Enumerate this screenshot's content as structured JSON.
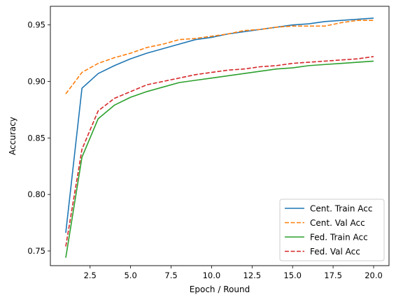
{
  "chart_data": {
    "type": "line",
    "title": "",
    "xlabel": "Epoch / Round",
    "ylabel": "Accuracy",
    "xlim": [
      0.05,
      20.95
    ],
    "ylim": [
      0.737,
      0.9665
    ],
    "xticks": [
      2.5,
      5.0,
      7.5,
      10.0,
      12.5,
      15.0,
      17.5,
      20.0
    ],
    "xtick_labels": [
      "2.5",
      "5.0",
      "7.5",
      "10.0",
      "12.5",
      "15.0",
      "17.5",
      "20.0"
    ],
    "yticks": [
      0.75,
      0.8,
      0.85,
      0.9,
      0.95
    ],
    "ytick_labels": [
      "0.75",
      "0.80",
      "0.85",
      "0.90",
      "0.95"
    ],
    "grid": false,
    "legend_position": "lower-right",
    "x": [
      1,
      2,
      3,
      4,
      5,
      6,
      7,
      8,
      9,
      10,
      11,
      12,
      13,
      14,
      15,
      16,
      17,
      18,
      19,
      20
    ],
    "series": [
      {
        "name": "Cent. Train Acc",
        "color": "#1f77b4",
        "style": "solid",
        "values": [
          0.766,
          0.894,
          0.907,
          0.914,
          0.92,
          0.925,
          0.929,
          0.933,
          0.937,
          0.939,
          0.942,
          0.944,
          0.946,
          0.948,
          0.95,
          0.951,
          0.953,
          0.954,
          0.955,
          0.956
        ]
      },
      {
        "name": "Cent. Val Acc",
        "color": "#ff7f0e",
        "style": "dashed",
        "values": [
          0.889,
          0.908,
          0.916,
          0.921,
          0.925,
          0.93,
          0.933,
          0.937,
          0.938,
          0.94,
          0.942,
          0.945,
          0.946,
          0.948,
          0.949,
          0.949,
          0.949,
          0.952,
          0.954,
          0.954
        ]
      },
      {
        "name": "Fed. Train Acc",
        "color": "#2ca02c",
        "style": "solid",
        "values": [
          0.744,
          0.833,
          0.867,
          0.879,
          0.886,
          0.891,
          0.895,
          0.899,
          0.901,
          0.903,
          0.905,
          0.907,
          0.909,
          0.911,
          0.912,
          0.914,
          0.915,
          0.916,
          0.917,
          0.918
        ]
      },
      {
        "name": "Fed. Val Acc",
        "color": "#d62728",
        "style": "dashed",
        "values": [
          0.754,
          0.84,
          0.874,
          0.885,
          0.891,
          0.897,
          0.9,
          0.903,
          0.906,
          0.908,
          0.91,
          0.911,
          0.913,
          0.914,
          0.916,
          0.917,
          0.918,
          0.919,
          0.92,
          0.922
        ]
      }
    ]
  }
}
